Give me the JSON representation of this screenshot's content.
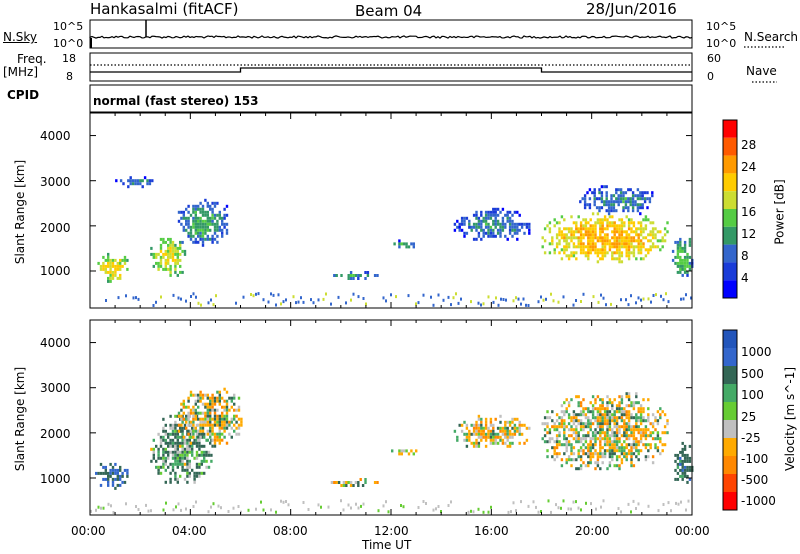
{
  "header": {
    "station": "Hankasalmi (fitACF)",
    "beam": "Beam 04",
    "date": "28/Jun/2016"
  },
  "noise_panel": {
    "left_label": "N.Sky",
    "right_label": "N.Search",
    "ticks_left": [
      "10^5",
      "10^0"
    ],
    "ticks_right": [
      "10^5",
      "10^0"
    ]
  },
  "freq_panel": {
    "left_label_line1": "Freq.",
    "left_label_line2": "[MHz]",
    "right_label": "Nave",
    "ticks_left": [
      "18",
      "8"
    ],
    "ticks_right": [
      "60",
      "0"
    ]
  },
  "cpid": {
    "label": "CPID",
    "value": "normal (fast stereo) 153"
  },
  "chart_data": [
    {
      "type": "heatmap",
      "title": "Power",
      "xlabel": "Time UT",
      "ylabel": "Slant Range [km]",
      "xlim": [
        "00:00",
        "24:00"
      ],
      "ylim": [
        180,
        4500
      ],
      "y_ticks": [
        "4000",
        "3000",
        "2000",
        "1000"
      ],
      "colorbar_label": "Power [dB]",
      "colorbar_ticks": [
        "28",
        "24",
        "20",
        "16",
        "12",
        "8",
        "4"
      ],
      "colorbar_colors": [
        "#ff0000",
        "#ff5a00",
        "#ff9a00",
        "#ffcc00",
        "#ccdd33",
        "#55cc44",
        "#339966",
        "#3366cc",
        "#1a3cd8",
        "#0000ff"
      ],
      "patches": [
        {
          "t": [
            0.2,
            1.5
          ],
          "r": [
            800,
            1400
          ],
          "level": 16
        },
        {
          "t": [
            2.4,
            3.8
          ],
          "r": [
            900,
            1800
          ],
          "level": 14
        },
        {
          "t": [
            3.5,
            5.5
          ],
          "r": [
            1600,
            2600
          ],
          "level": 8
        },
        {
          "t": [
            1.0,
            2.5
          ],
          "r": [
            2900,
            3100
          ],
          "level": 6
        },
        {
          "t": [
            9.5,
            11.5
          ],
          "r": [
            850,
            1000
          ],
          "level": 8
        },
        {
          "t": [
            12.0,
            13.0
          ],
          "r": [
            1550,
            1700
          ],
          "level": 8
        },
        {
          "t": [
            14.5,
            17.5
          ],
          "r": [
            1700,
            2400
          ],
          "level": 6
        },
        {
          "t": [
            18.0,
            23.0
          ],
          "r": [
            1200,
            2300
          ],
          "level": 18
        },
        {
          "t": [
            19.5,
            22.5
          ],
          "r": [
            2300,
            2900
          ],
          "level": 6
        },
        {
          "t": [
            23.2,
            24.0
          ],
          "r": [
            900,
            1800
          ],
          "level": 10
        }
      ]
    },
    {
      "type": "heatmap",
      "title": "Velocity",
      "xlabel": "Time UT",
      "ylabel": "Slant Range [km]",
      "xlim": [
        "00:00",
        "24:00"
      ],
      "ylim": [
        180,
        4500
      ],
      "y_ticks": [
        "4000",
        "3000",
        "2000",
        "1000"
      ],
      "x_ticks": [
        "00:00",
        "04:00",
        "08:00",
        "12:00",
        "16:00",
        "20:00",
        "00:00"
      ],
      "colorbar_label": "Velocity [m s^-1]",
      "colorbar_ticks": [
        "1000",
        "500",
        "100",
        "25",
        "-25",
        "-100",
        "-500",
        "-1000"
      ],
      "colorbar_colors": [
        "#2255bb",
        "#3366cc",
        "#336655",
        "#44aa66",
        "#66cc33",
        "#c0c0c0",
        "#ffaa00",
        "#ff8800",
        "#ff4400",
        "#ff0000"
      ],
      "patches": [
        {
          "t": [
            0.2,
            1.5
          ],
          "r": [
            800,
            1400
          ],
          "vel": 300
        },
        {
          "t": [
            2.4,
            4.8
          ],
          "r": [
            900,
            2400
          ],
          "vel": 100
        },
        {
          "t": [
            3.5,
            6.0
          ],
          "r": [
            1700,
            3000
          ],
          "vel": 0
        },
        {
          "t": [
            9.5,
            11.5
          ],
          "r": [
            850,
            1000
          ],
          "vel": 0
        },
        {
          "t": [
            12.0,
            13.0
          ],
          "r": [
            1550,
            1700
          ],
          "vel": 0
        },
        {
          "t": [
            14.5,
            17.5
          ],
          "r": [
            1700,
            2400
          ],
          "vel": 0
        },
        {
          "t": [
            18.0,
            23.0
          ],
          "r": [
            1200,
            2900
          ],
          "vel": 0
        },
        {
          "t": [
            23.2,
            24.0
          ],
          "r": [
            900,
            1800
          ],
          "vel": 200
        }
      ]
    }
  ]
}
